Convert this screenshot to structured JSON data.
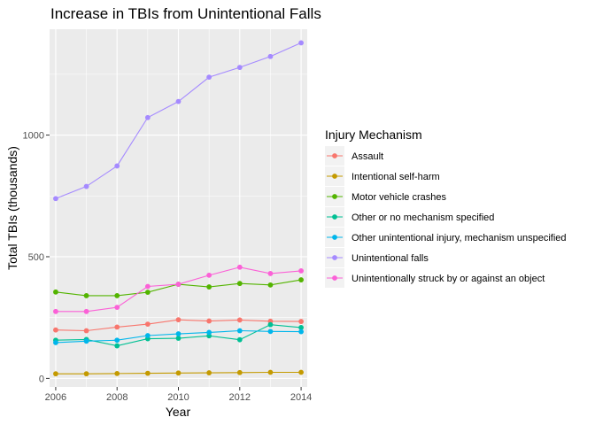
{
  "chart_data": {
    "type": "line",
    "title": "Increase in TBIs from Unintentional Falls",
    "xlabel": "Year",
    "ylabel": "Total TBIs (thousands)",
    "x": [
      2006,
      2007,
      2008,
      2009,
      2010,
      2011,
      2012,
      2013,
      2014
    ],
    "x_ticks": [
      "2006",
      "2008",
      "2010",
      "2012",
      "2014"
    ],
    "y_ticks": [
      "0",
      "500",
      "1000"
    ],
    "xlim": [
      2005.8,
      2014.2
    ],
    "ylim": [
      -35,
      1435
    ],
    "grid": true,
    "legend": {
      "title": "Injury Mechanism",
      "position": "right"
    },
    "series": [
      {
        "name": "Assault",
        "color": "#F8766D",
        "values": [
          199,
          196,
          211,
          223,
          241,
          236,
          240,
          235,
          234
        ]
      },
      {
        "name": "Intentional self-harm",
        "color": "#C49A00",
        "values": [
          19,
          19,
          20,
          21,
          22,
          23,
          24,
          25,
          25
        ]
      },
      {
        "name": "Motor vehicle crashes",
        "color": "#53B400",
        "values": [
          355,
          340,
          340,
          354,
          387,
          376,
          390,
          384,
          405
        ]
      },
      {
        "name": "Other or no mechanism specified",
        "color": "#00C094",
        "values": [
          157,
          160,
          134,
          163,
          165,
          175,
          159,
          221,
          209
        ]
      },
      {
        "name": "Other unintentional injury, mechanism unspecified",
        "color": "#00B6EB",
        "values": [
          147,
          153,
          157,
          176,
          183,
          189,
          196,
          193,
          192
        ]
      },
      {
        "name": "Unintentional falls",
        "color": "#A58AFF",
        "values": [
          739,
          789,
          873,
          1072,
          1138,
          1238,
          1278,
          1323,
          1379
        ]
      },
      {
        "name": "Unintentionally struck by or against an object",
        "color": "#FB61D7",
        "values": [
          275,
          275,
          292,
          378,
          387,
          424,
          457,
          431,
          442
        ]
      }
    ]
  }
}
